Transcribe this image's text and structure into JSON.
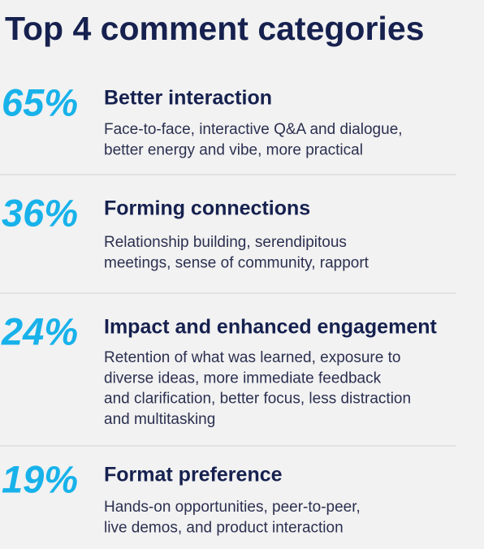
{
  "title": "Top 4 comment categories",
  "items": [
    {
      "percent": "65%",
      "heading": "Better interaction",
      "description": [
        "Face-to-face, interactive Q&A and dialogue,",
        "better energy and vibe, more practical"
      ]
    },
    {
      "percent": "36%",
      "heading": "Forming connections",
      "description": [
        "Relationship building, serendipitous",
        "meetings, sense of community, rapport"
      ]
    },
    {
      "percent": "24%",
      "heading": "Impact and enhanced engagement",
      "description": [
        "Retention of what was learned, exposure to",
        "diverse ideas, more immediate feedback",
        "and clarification, better focus, less distraction",
        "and multitasking"
      ]
    },
    {
      "percent": "19%",
      "heading": "Format preference",
      "description": [
        "Hands-on opportunities, peer-to-peer,",
        "live demos, and product interaction"
      ]
    }
  ]
}
